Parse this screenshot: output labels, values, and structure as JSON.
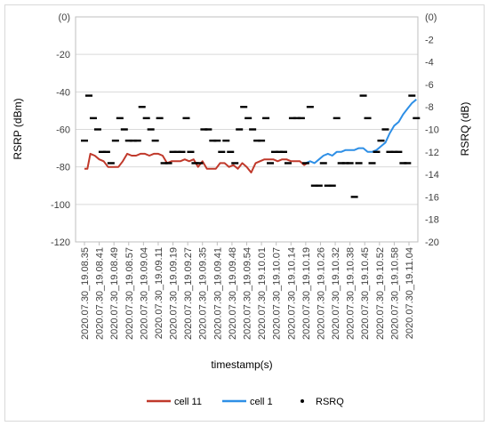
{
  "chart_data": {
    "type": "line",
    "xlabel": "timestamp(s)",
    "ylabel_left": "RSRP (dBm)",
    "ylabel_right": "RSRQ (dB)",
    "ylim_left": [
      -120,
      0
    ],
    "ylim_right": [
      -20,
      0
    ],
    "left_ticks": [
      "-120",
      "-100",
      "-80",
      "-60",
      "-40",
      "-20",
      "(0)"
    ],
    "right_ticks": [
      "-20",
      "-18",
      "-16",
      "-14",
      "-12",
      "-10",
      "-8",
      "-6",
      "-4",
      "-2",
      "(0)"
    ],
    "grid": true,
    "legend_position": "bottom",
    "categories": [
      "2020.07.30_19.08.35",
      "2020.07.30_19.08.41",
      "2020.07.30_19.08.49",
      "2020.07.30_19.08.57",
      "2020.07.30_19.09.04",
      "2020.07.30_19.09.11",
      "2020.07.30_19.09.19",
      "2020.07.30_19.09.27",
      "2020.07.30_19.09.35",
      "2020.07.30_19.09.41",
      "2020.07.30_19.09.48",
      "2020.07.30_19.09.54",
      "2020.07.30_19.10.01",
      "2020.07.30_19.10.07",
      "2020.07.30_19.10.14",
      "2020.07.30_19.10.19",
      "2020.07.30_19.10.26",
      "2020.07.30_19.10.32",
      "2020.07.30_19.10.38",
      "2020.07.30_19.10.45",
      "2020.07.30_19.10.52",
      "2020.07.30_19.10.58",
      "2020.07.30_19.11.04"
    ],
    "series": [
      {
        "name": "cell 11",
        "axis": "left",
        "color": "#c0392b",
        "x": [
          0,
          0.2,
          0.4,
          0.7,
          1.0,
          1.3,
          1.6,
          2.0,
          2.3,
          2.6,
          2.9,
          3.2,
          3.5,
          3.8,
          4.1,
          4.4,
          4.7,
          5.0,
          5.3,
          5.6,
          5.9,
          6.2,
          6.5,
          6.8,
          7.1,
          7.4,
          7.7,
          8.0,
          8.3,
          8.6,
          8.9,
          9.2,
          9.5,
          9.8,
          10.1,
          10.4,
          10.7,
          11.0,
          11.3,
          11.6,
          11.9,
          12.2,
          12.5,
          12.8,
          13.1,
          13.4,
          13.7,
          14.0,
          14.3,
          14.6,
          14.9,
          15.1
        ],
        "values": [
          -81,
          -81,
          -73,
          -74,
          -76,
          -77,
          -80,
          -80,
          -80,
          -77,
          -73,
          -74,
          -74,
          -73,
          -73,
          -74,
          -73,
          -73,
          -74,
          -78,
          -77,
          -77,
          -77,
          -76,
          -77,
          -76,
          -80,
          -77,
          -81,
          -81,
          -81,
          -78,
          -78,
          -80,
          -79,
          -81,
          -78,
          -80,
          -83,
          -78,
          -77,
          -76,
          -76,
          -76,
          -77,
          -76,
          -76,
          -77,
          -77,
          -77,
          -79,
          -78
        ]
      },
      {
        "name": "cell 1",
        "axis": "left",
        "color": "#2e8fe6",
        "x": [
          15.0,
          15.3,
          15.6,
          15.9,
          16.2,
          16.5,
          16.8,
          17.1,
          17.4,
          17.7,
          18.0,
          18.3,
          18.6,
          18.9,
          19.2,
          19.5,
          19.8,
          20.1,
          20.4,
          20.7,
          21.0,
          21.3,
          21.6,
          21.9,
          22.2,
          22.5
        ],
        "values": [
          -78,
          -77,
          -78,
          -76,
          -74,
          -73,
          -74,
          -72,
          -72,
          -71,
          -71,
          -71,
          -70,
          -70,
          -72,
          -72,
          -71,
          -69,
          -67,
          -62,
          -58,
          -56,
          -52,
          -49,
          -46,
          -44
        ]
      },
      {
        "name": "RSRQ",
        "axis": "right",
        "color": "#000000",
        "type": "scatter",
        "x": [
          0.0,
          0.3,
          0.6,
          0.9,
          1.2,
          1.5,
          1.8,
          2.1,
          2.4,
          2.7,
          3.0,
          3.3,
          3.6,
          3.9,
          4.2,
          4.5,
          4.8,
          5.1,
          5.4,
          5.7,
          6.0,
          6.3,
          6.6,
          6.9,
          7.2,
          7.5,
          7.8,
          8.1,
          8.4,
          8.7,
          9.0,
          9.3,
          9.6,
          9.9,
          10.2,
          10.5,
          10.8,
          11.1,
          11.4,
          11.7,
          12.0,
          12.3,
          12.6,
          12.9,
          13.2,
          13.5,
          13.8,
          14.1,
          14.4,
          14.7,
          15.0,
          15.3,
          15.6,
          15.9,
          16.2,
          16.5,
          16.8,
          17.1,
          17.4,
          17.7,
          18.0,
          18.3,
          18.6,
          18.9,
          19.2,
          19.5,
          19.8,
          20.1,
          20.4,
          20.7,
          21.0,
          21.3,
          21.6,
          21.9,
          22.2,
          22.5
        ],
        "values": [
          -11,
          -7,
          -9,
          -10,
          -12,
          -12,
          -13,
          -11,
          -9,
          -10,
          -11,
          -11,
          -11,
          -8,
          -9,
          -10,
          -11,
          -9,
          -13,
          -13,
          -12,
          -12,
          -12,
          -9,
          -12,
          -13,
          -13,
          -10,
          -10,
          -11,
          -11,
          -12,
          -11,
          -12,
          -13,
          -10,
          -8,
          -9,
          -10,
          -11,
          -11,
          -9,
          -13,
          -12,
          -12,
          -12,
          -13,
          -9,
          -9,
          -9,
          -13,
          -8,
          -15,
          -15,
          -13,
          -15,
          -15,
          -9,
          -13,
          -13,
          -13,
          -16,
          -13,
          -7,
          -9,
          -13,
          -12,
          -11,
          -10,
          -12,
          -12,
          -12,
          -13,
          -13,
          -7,
          -9
        ]
      }
    ]
  }
}
